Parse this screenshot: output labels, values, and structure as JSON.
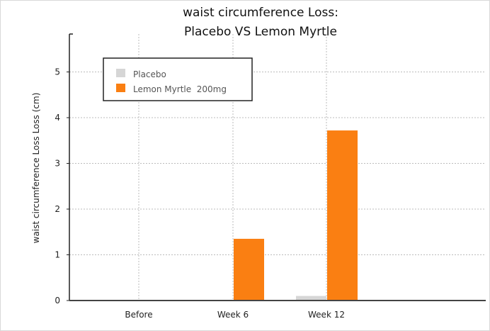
{
  "chart_data": {
    "type": "bar",
    "title": [
      "waist circumference Loss:",
      "Placebo VS Lemon Myrtle"
    ],
    "xlabel": "",
    "ylabel": "waist circumference Loss Loss (cm)",
    "categories": [
      "Before",
      "Week 6",
      "Week 12"
    ],
    "series": [
      {
        "name": "Placebo",
        "color": "#d6d6d6",
        "values": [
          0,
          0,
          0.1
        ]
      },
      {
        "name": "Lemon Myrtle  200mg",
        "color": "#fa7f12",
        "values": [
          0,
          1.35,
          3.72
        ]
      }
    ],
    "yticks": [
      0,
      1,
      2,
      3,
      4,
      5
    ],
    "ylim": [
      0,
      5.8
    ],
    "grid": true,
    "legend": "top-left"
  }
}
